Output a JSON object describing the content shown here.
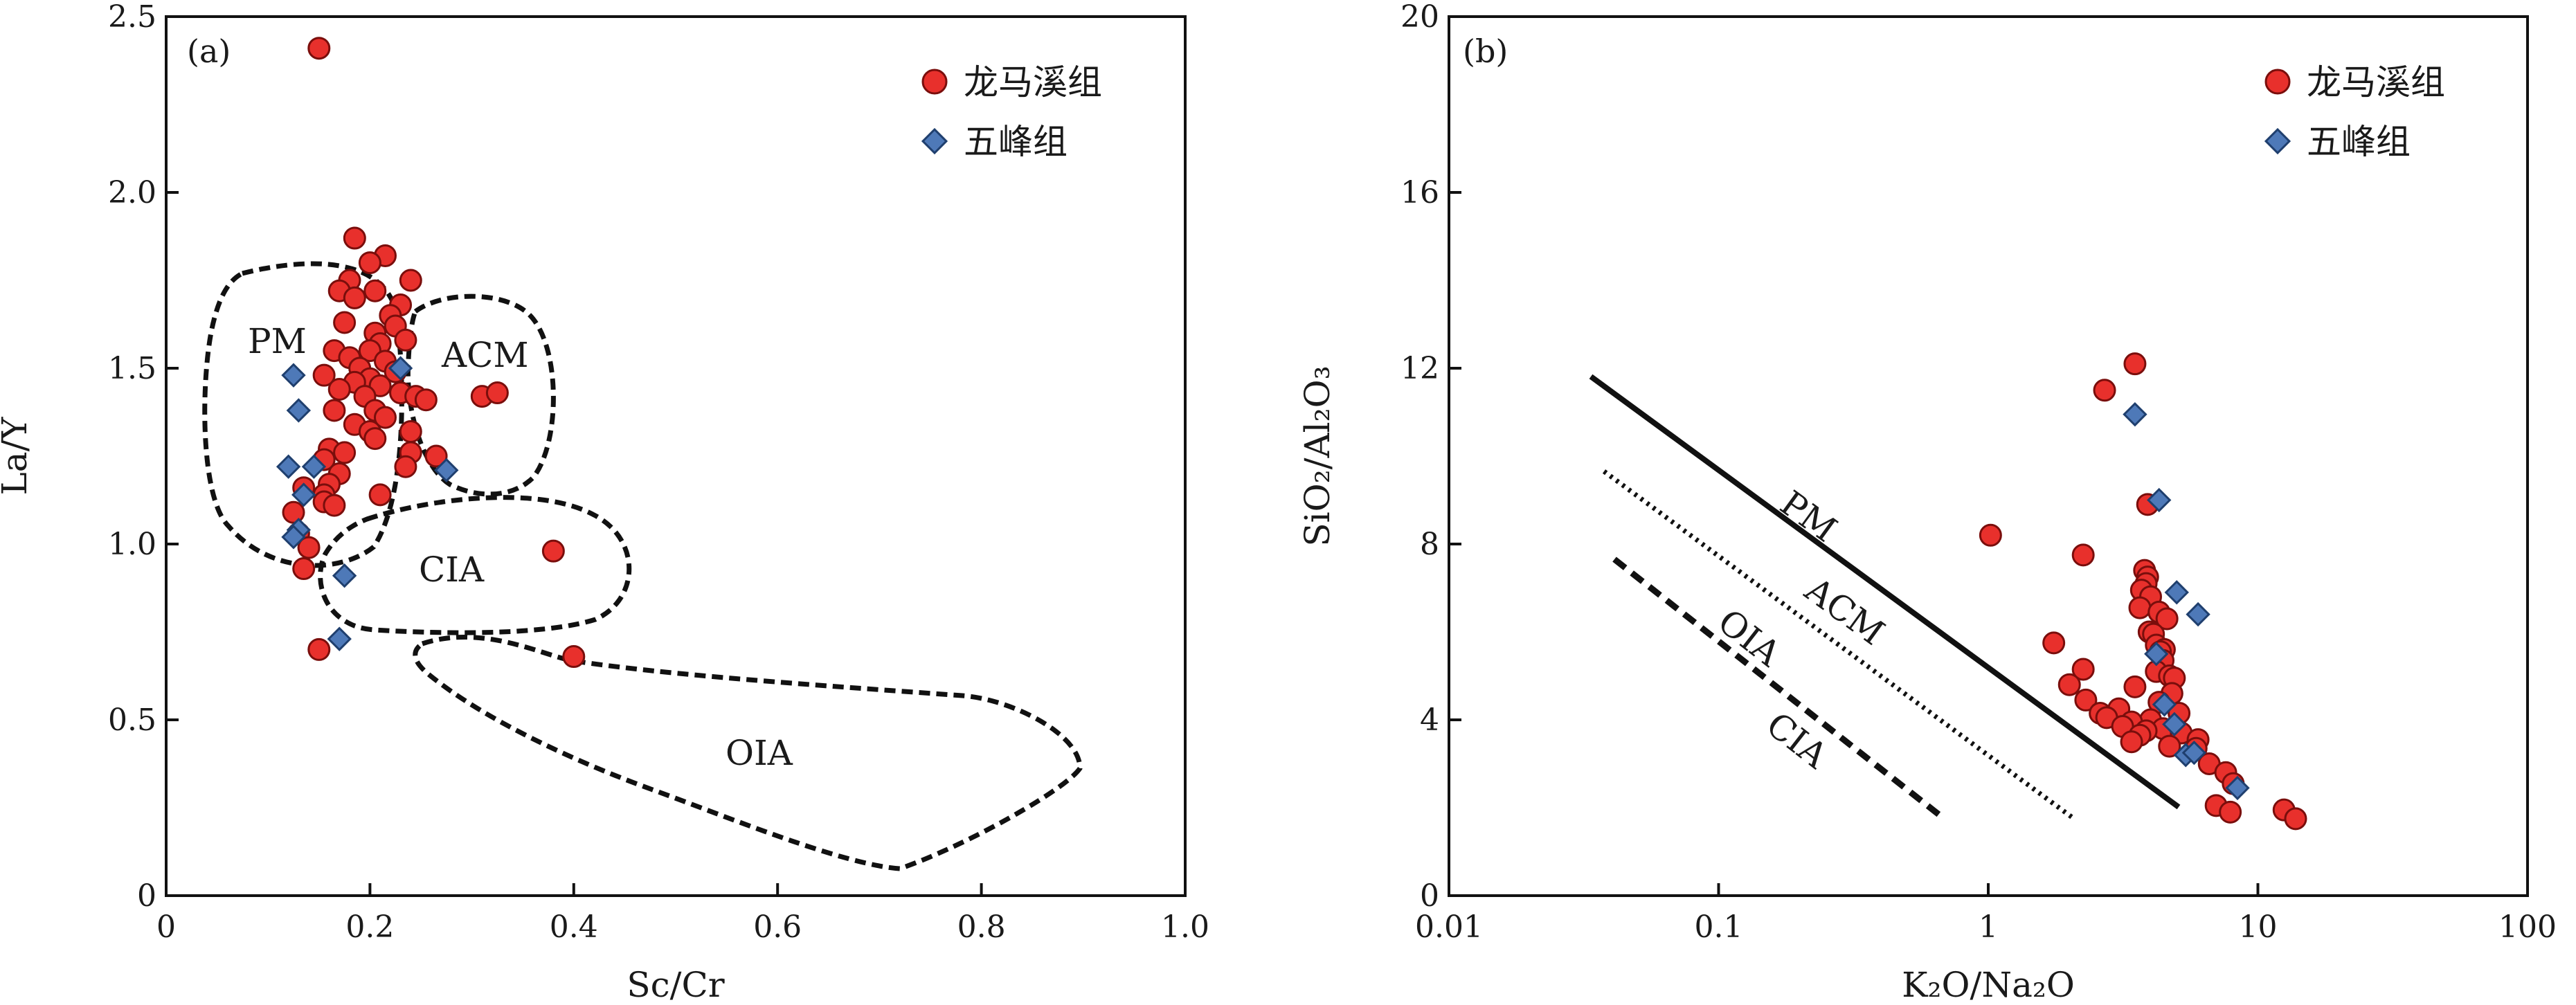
{
  "chart_data": [
    {
      "type": "scatter",
      "panel_label": "(a)",
      "xlabel": "Sc/Cr",
      "ylabel": "La/Y",
      "xlim": [
        0,
        1.0
      ],
      "ylim": [
        0,
        2.5
      ],
      "x_ticks": [
        "0",
        "0.2",
        "0.4",
        "0.6",
        "0.8",
        "1.0"
      ],
      "y_ticks": [
        "0",
        "0.5",
        "1.0",
        "1.5",
        "2.0",
        "2.5"
      ],
      "legend_position": "top-right",
      "series": [
        {
          "name": "龙马溪组",
          "marker": "circle",
          "color": "#e8302c",
          "points": [
            [
              0.15,
              2.41
            ],
            [
              0.185,
              1.87
            ],
            [
              0.215,
              1.82
            ],
            [
              0.2,
              1.8
            ],
            [
              0.18,
              1.75
            ],
            [
              0.24,
              1.75
            ],
            [
              0.17,
              1.72
            ],
            [
              0.205,
              1.72
            ],
            [
              0.185,
              1.7
            ],
            [
              0.23,
              1.68
            ],
            [
              0.22,
              1.65
            ],
            [
              0.175,
              1.63
            ],
            [
              0.225,
              1.62
            ],
            [
              0.205,
              1.6
            ],
            [
              0.235,
              1.58
            ],
            [
              0.21,
              1.57
            ],
            [
              0.165,
              1.55
            ],
            [
              0.2,
              1.55
            ],
            [
              0.18,
              1.53
            ],
            [
              0.215,
              1.52
            ],
            [
              0.19,
              1.5
            ],
            [
              0.225,
              1.49
            ],
            [
              0.155,
              1.48
            ],
            [
              0.2,
              1.47
            ],
            [
              0.185,
              1.46
            ],
            [
              0.21,
              1.45
            ],
            [
              0.17,
              1.44
            ],
            [
              0.23,
              1.43
            ],
            [
              0.195,
              1.42
            ],
            [
              0.245,
              1.42
            ],
            [
              0.255,
              1.41
            ],
            [
              0.31,
              1.42
            ],
            [
              0.325,
              1.43
            ],
            [
              0.205,
              1.38
            ],
            [
              0.165,
              1.38
            ],
            [
              0.215,
              1.36
            ],
            [
              0.185,
              1.34
            ],
            [
              0.2,
              1.32
            ],
            [
              0.24,
              1.32
            ],
            [
              0.205,
              1.3
            ],
            [
              0.16,
              1.27
            ],
            [
              0.175,
              1.26
            ],
            [
              0.24,
              1.26
            ],
            [
              0.265,
              1.25
            ],
            [
              0.155,
              1.24
            ],
            [
              0.235,
              1.22
            ],
            [
              0.17,
              1.2
            ],
            [
              0.16,
              1.17
            ],
            [
              0.135,
              1.16
            ],
            [
              0.155,
              1.14
            ],
            [
              0.21,
              1.14
            ],
            [
              0.155,
              1.12
            ],
            [
              0.165,
              1.11
            ],
            [
              0.125,
              1.09
            ],
            [
              0.13,
              1.03
            ],
            [
              0.14,
              0.99
            ],
            [
              0.135,
              0.93
            ],
            [
              0.38,
              0.98
            ],
            [
              0.15,
              0.7
            ],
            [
              0.4,
              0.68
            ]
          ]
        },
        {
          "name": "五峰组",
          "marker": "diamond",
          "color": "#4e79b8",
          "points": [
            [
              0.23,
              1.5
            ],
            [
              0.125,
              1.48
            ],
            [
              0.13,
              1.38
            ],
            [
              0.12,
              1.22
            ],
            [
              0.145,
              1.22
            ],
            [
              0.275,
              1.21
            ],
            [
              0.135,
              1.14
            ],
            [
              0.13,
              1.04
            ],
            [
              0.125,
              1.02
            ],
            [
              0.175,
              0.91
            ],
            [
              0.17,
              0.73
            ]
          ]
        }
      ],
      "regions": [
        {
          "label": "PM"
        },
        {
          "label": "ACM"
        },
        {
          "label": "CIA"
        },
        {
          "label": "OIA"
        }
      ]
    },
    {
      "type": "scatter",
      "panel_label": "(b)",
      "xlabel": "K₂O/Na₂O",
      "ylabel": "SiO₂/Al₂O₃",
      "xscale": "log",
      "xlim": [
        0.01,
        100
      ],
      "ylim": [
        0,
        20
      ],
      "x_ticks": [
        "0.01",
        "0.1",
        "1",
        "10",
        "100"
      ],
      "y_ticks": [
        "0",
        "4",
        "8",
        "12",
        "16",
        "20"
      ],
      "legend_position": "top-right",
      "series": [
        {
          "name": "龙马溪组",
          "marker": "circle",
          "color": "#e8302c",
          "points": [
            [
              3.5,
              12.1
            ],
            [
              2.7,
              11.5
            ],
            [
              3.9,
              8.9
            ],
            [
              1.02,
              8.2
            ],
            [
              2.25,
              7.75
            ],
            [
              3.8,
              7.4
            ],
            [
              3.9,
              7.25
            ],
            [
              3.85,
              7.1
            ],
            [
              3.7,
              6.95
            ],
            [
              4.0,
              6.8
            ],
            [
              3.65,
              6.55
            ],
            [
              4.3,
              6.45
            ],
            [
              4.6,
              6.3
            ],
            [
              3.95,
              6.0
            ],
            [
              4.1,
              5.95
            ],
            [
              1.75,
              5.75
            ],
            [
              4.2,
              5.7
            ],
            [
              4.5,
              5.6
            ],
            [
              4.35,
              5.55
            ],
            [
              4.45,
              5.35
            ],
            [
              2.25,
              5.15
            ],
            [
              4.2,
              5.1
            ],
            [
              4.7,
              5.0
            ],
            [
              4.9,
              4.95
            ],
            [
              2.0,
              4.8
            ],
            [
              3.5,
              4.75
            ],
            [
              4.8,
              4.6
            ],
            [
              2.3,
              4.45
            ],
            [
              4.3,
              4.4
            ],
            [
              3.05,
              4.25
            ],
            [
              2.6,
              4.15
            ],
            [
              5.1,
              4.15
            ],
            [
              2.75,
              4.05
            ],
            [
              4.0,
              4.0
            ],
            [
              3.4,
              3.95
            ],
            [
              3.15,
              3.85
            ],
            [
              4.45,
              3.8
            ],
            [
              3.85,
              3.75
            ],
            [
              5.2,
              3.7
            ],
            [
              3.65,
              3.65
            ],
            [
              6.0,
              3.55
            ],
            [
              3.4,
              3.5
            ],
            [
              4.7,
              3.4
            ],
            [
              5.9,
              3.35
            ],
            [
              6.6,
              3.0
            ],
            [
              7.6,
              2.8
            ],
            [
              8.1,
              2.55
            ],
            [
              7.0,
              2.05
            ],
            [
              7.9,
              1.9
            ],
            [
              12.5,
              1.95
            ],
            [
              13.8,
              1.75
            ]
          ]
        },
        {
          "name": "五峰组",
          "marker": "diamond",
          "color": "#4e79b8",
          "points": [
            [
              3.5,
              10.95
            ],
            [
              4.3,
              9.0
            ],
            [
              5.0,
              6.9
            ],
            [
              6.0,
              6.4
            ],
            [
              4.2,
              5.5
            ],
            [
              4.5,
              4.35
            ],
            [
              4.9,
              3.9
            ],
            [
              5.4,
              3.2
            ],
            [
              5.8,
              3.25
            ],
            [
              8.4,
              2.45
            ]
          ]
        }
      ],
      "lines": [
        {
          "label": "PM",
          "style": "solid",
          "from": [
            0.035,
            11.75
          ],
          "to": [
            4.8,
            2.0
          ]
        },
        {
          "label": "ACM",
          "style": "dotted",
          "from": [
            0.04,
            9.6
          ],
          "to": [
            2.0,
            1.75
          ]
        },
        {
          "label": "OIA",
          "style": "dashed",
          "from": [
            0.045,
            7.65
          ],
          "to": [
            0.72,
            1.75
          ]
        },
        {
          "label": "CIA",
          "style": "dashed",
          "from": null,
          "to": null
        }
      ]
    }
  ],
  "colors": {
    "circle_fill": "#e8302c",
    "circle_stroke": "#7a0e0c",
    "diamond_fill": "#4e79b8",
    "diamond_stroke": "#1f3f6e"
  }
}
